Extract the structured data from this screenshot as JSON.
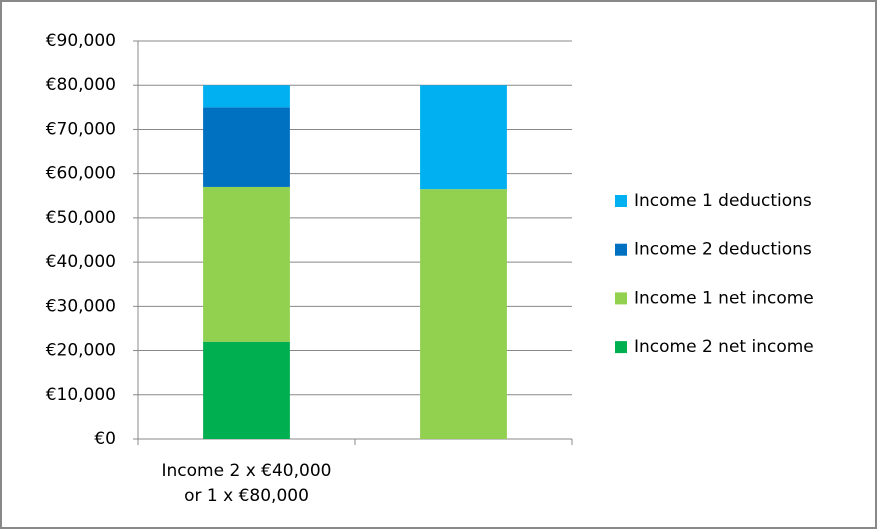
{
  "chart_data": {
    "type": "stacked_bar",
    "categories": [
      "Income 2 x €40,000\nor 1 x €80,000",
      null
    ],
    "series": [
      {
        "name": "Income 1 deductions",
        "color": "#00b0f0",
        "values": [
          5000,
          23500
        ]
      },
      {
        "name": "Income 2 deductions",
        "color": "#0070c0",
        "values": [
          18000,
          0
        ]
      },
      {
        "name": "Income 1 net income",
        "color": "#92d050",
        "values": [
          35000,
          56500
        ]
      },
      {
        "name": "Income 2 net income",
        "color": "#00b050",
        "values": [
          22000,
          0
        ]
      }
    ],
    "ylim": [
      0,
      90000
    ],
    "yticks": [
      {
        "value": 0,
        "label": "€0"
      },
      {
        "value": 10000,
        "label": "€10,000"
      },
      {
        "value": 20000,
        "label": "€20,000"
      },
      {
        "value": 30000,
        "label": "€30,000"
      },
      {
        "value": 40000,
        "label": "€40,000"
      },
      {
        "value": 50000,
        "label": "€50,000"
      },
      {
        "value": 60000,
        "label": "€60,000"
      },
      {
        "value": 70000,
        "label": "€70,000"
      },
      {
        "value": 80000,
        "label": "€80,000"
      },
      {
        "value": 90000,
        "label": "€90,000"
      }
    ],
    "grid": true,
    "legend": "right"
  }
}
